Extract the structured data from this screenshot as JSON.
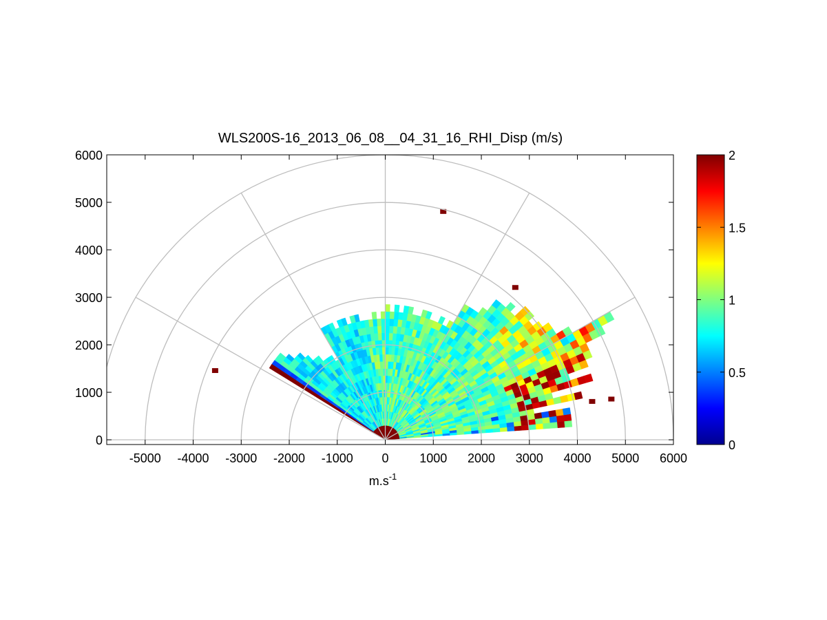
{
  "chart_data": {
    "type": "heatmap",
    "subtype": "polar-rhi-scan",
    "title": "WLS200S-16_2013_06_08__04_31_16_RHI_Disp (m/s)",
    "xlabel_base": "m.s",
    "xlabel_exp": "-1",
    "ylabel": "",
    "xlim": [
      -5800,
      6000
    ],
    "ylim": [
      -100,
      6000
    ],
    "x_ticks": [
      -5000,
      -4000,
      -3000,
      -2000,
      -1000,
      0,
      1000,
      2000,
      3000,
      4000,
      5000,
      6000
    ],
    "x_tick_labels": [
      "-5000",
      "-4000",
      "-3000",
      "-2000",
      "-1000",
      "0",
      "1000",
      "2000",
      "3000",
      "4000",
      "5000",
      "6000"
    ],
    "y_ticks": [
      0,
      1000,
      2000,
      3000,
      4000,
      5000,
      6000
    ],
    "y_tick_labels": [
      "0",
      "1000",
      "2000",
      "3000",
      "4000",
      "5000",
      "6000"
    ],
    "polar_grid": {
      "range_rings": [
        1000,
        2000,
        3000,
        4000,
        5000,
        6000
      ],
      "spokes_deg": [
        0,
        30,
        60,
        90,
        120,
        150,
        180
      ]
    },
    "scan": {
      "elevation_min_deg": 4,
      "elevation_max_deg": 148,
      "max_range": 5800
    },
    "colorbar": {
      "colormap": "jet",
      "min": 0,
      "max": 2,
      "ticks": [
        0,
        0.5,
        1,
        1.5,
        2
      ],
      "tick_labels": [
        "0",
        "0.5",
        "1",
        "1.5",
        "2"
      ]
    },
    "isolated_points": [
      {
        "x": -3550,
        "y": 1450,
        "value": 2.0
      },
      {
        "x": 1200,
        "y": 4800,
        "value": 2.0
      },
      {
        "x": 2700,
        "y": 3200,
        "value": 2.0
      },
      {
        "x": 4300,
        "y": 800,
        "value": 2.0
      },
      {
        "x": 4700,
        "y": 850,
        "value": 2.0
      }
    ]
  }
}
